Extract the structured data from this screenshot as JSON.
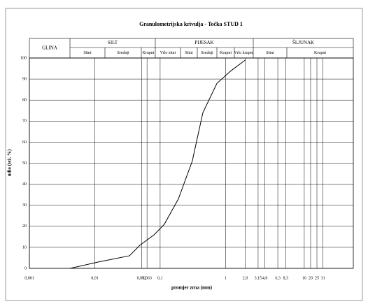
{
  "chart_data": {
    "type": "line",
    "title": "Granulometrijska krivulja - Točka STUD 1",
    "xlabel": "promjer zrna (mm)",
    "ylabel": "udio (tež. %)",
    "header": [
      {
        "name": "GLINA",
        "subs": []
      },
      {
        "name": "SILT",
        "subs": [
          "Sitni",
          "Srednji",
          "Krupni"
        ]
      },
      {
        "name": "PIJESAK",
        "subs": [
          "Vrlo sitni",
          "Sitni",
          "Srednji",
          "Krupni",
          "Vrlo krupni"
        ]
      },
      {
        "name": "ŠLJUNAK",
        "subs": [
          "Sitni",
          "Krupni"
        ]
      }
    ],
    "log_x": true,
    "xlim": [
      0.001,
      90
    ],
    "xticks": [
      {
        "value": 0.001,
        "label": "0,001"
      },
      {
        "value": 0.01,
        "label": "0,01"
      },
      {
        "value": 0.052,
        "label": "0,052"
      },
      {
        "value": 0.063,
        "label": "0,063"
      },
      {
        "value": 0.1,
        "label": "0,1"
      },
      1,
      {
        "value": 2,
        "label": "2,0"
      },
      {
        "value": 3.15,
        "label": "3,15"
      },
      {
        "value": 4,
        "label": "4,0"
      },
      {
        "value": 6.3,
        "label": "6,3"
      },
      {
        "value": 8.3,
        "label": "8,3"
      },
      16,
      20,
      25,
      31
    ],
    "ylim": [
      0,
      100
    ],
    "yticks": [
      0,
      10,
      20,
      30,
      40,
      50,
      60,
      70,
      80,
      90,
      100
    ],
    "grid": true,
    "series": [
      {
        "name": "STUD 1",
        "color": "#000000",
        "x": [
          0.0042,
          0.0112,
          0.034,
          0.049,
          0.081,
          0.116,
          0.19,
          0.31,
          0.45,
          0.74,
          1.22,
          2.0
        ],
        "values": [
          0,
          3,
          6,
          11,
          16,
          21,
          33,
          51,
          74,
          88,
          94,
          99
        ]
      }
    ]
  }
}
